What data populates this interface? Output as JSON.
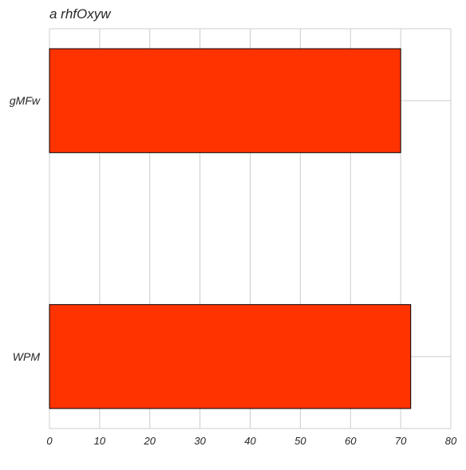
{
  "chart_data": {
    "type": "bar",
    "orientation": "horizontal",
    "title": "a rhfOxyw",
    "xlabel": "",
    "ylabel": "",
    "categories": [
      "gMFw",
      "WPM"
    ],
    "values": [
      70,
      72
    ],
    "xlim": [
      0,
      80
    ],
    "xticks": [
      0,
      10,
      20,
      30,
      40,
      50,
      60,
      70,
      80
    ],
    "grid": true,
    "legend": "none",
    "bar_color": "#ff3300"
  }
}
